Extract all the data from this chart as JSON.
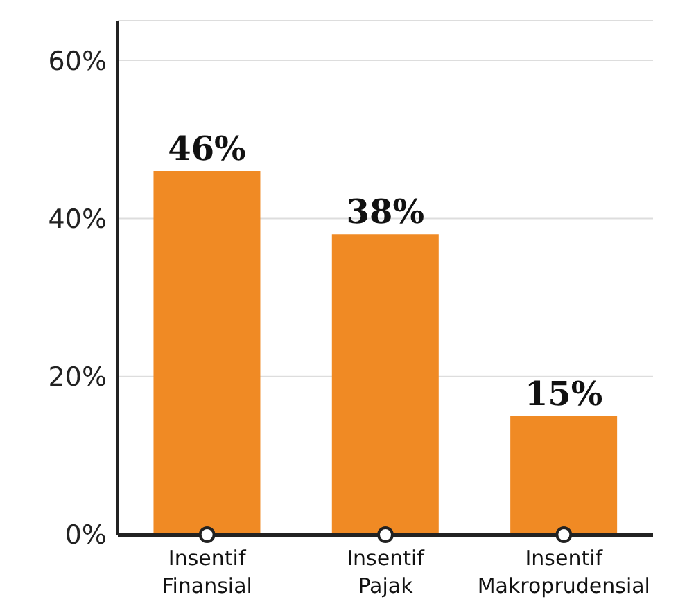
{
  "chart_data": {
    "type": "bar",
    "categories": [
      "Insentif Finansial",
      "Insentif Pajak",
      "Insentif Makroprudensial"
    ],
    "values": [
      46,
      38,
      15
    ],
    "color": "#f08a24",
    "ylim": [
      0,
      65
    ],
    "yticks": [
      {
        "value": 0,
        "label": "0%"
      },
      {
        "value": 20,
        "label": "20%"
      },
      {
        "value": 40,
        "label": "40%"
      },
      {
        "value": 60,
        "label": "60%"
      }
    ],
    "grid": "y",
    "value_labels": [
      "46%",
      "38%",
      "15%"
    ]
  }
}
